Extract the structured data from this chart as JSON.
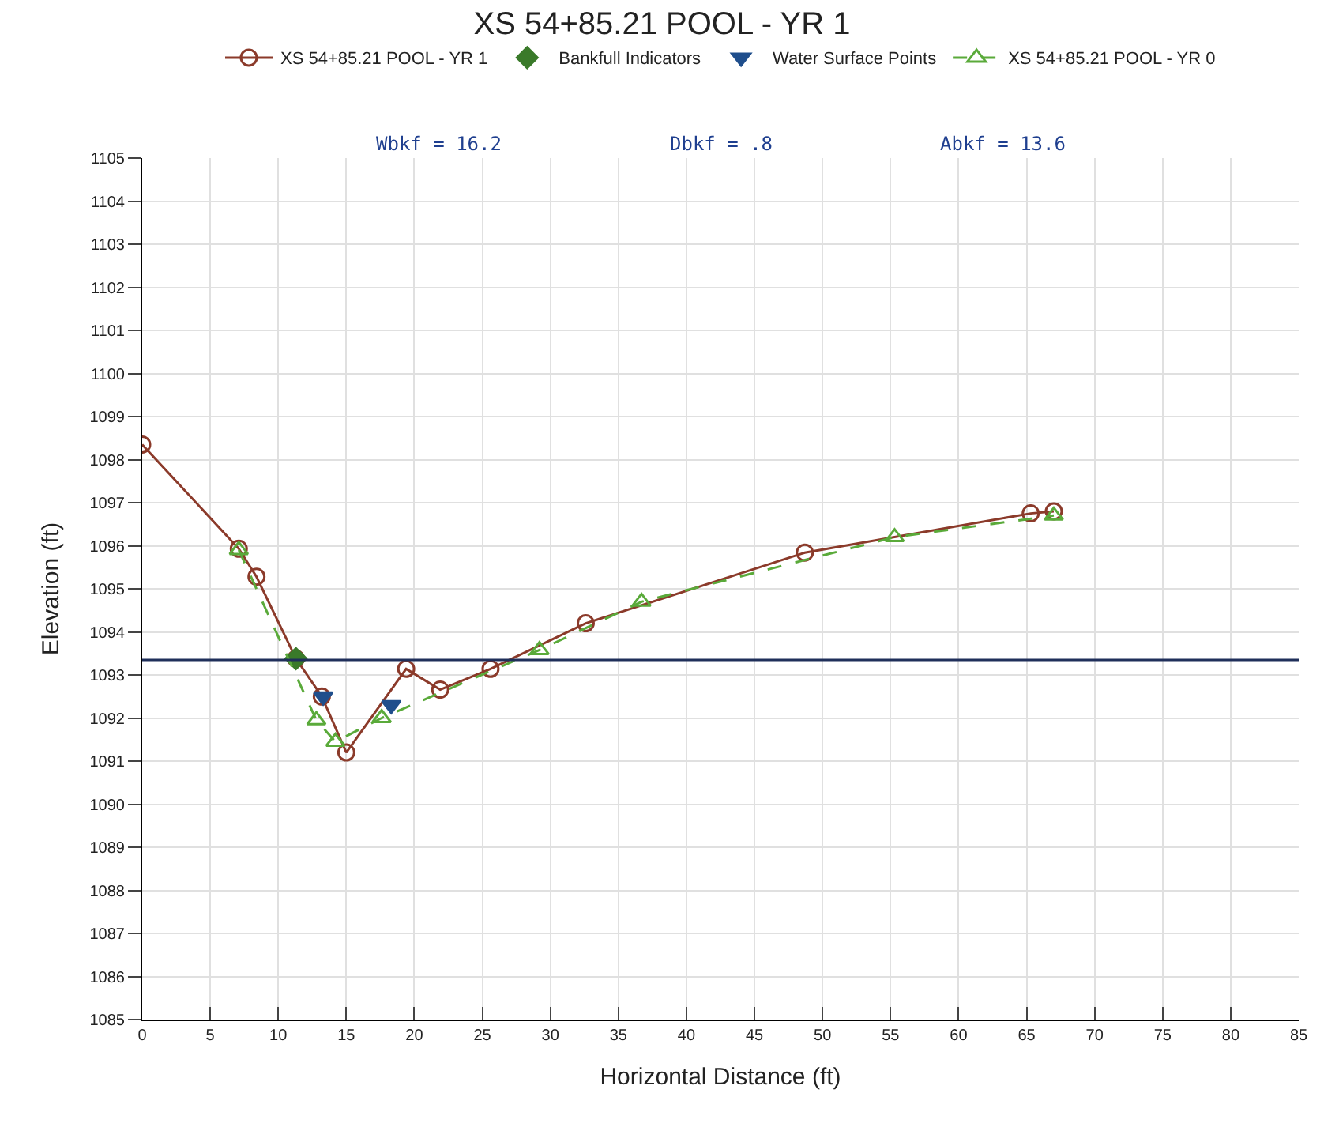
{
  "chart_data": {
    "type": "line",
    "title": "XS 54+85.21 POOL - YR 1",
    "xlabel": "Horizontal Distance (ft)",
    "ylabel": "Elevation (ft)",
    "annotations": [
      "Wbkf = 16.2",
      "Dbkf = .8",
      "Abkf = 13.6"
    ],
    "series": [
      {
        "name": "XS 54+85.21 POOL - YR 1",
        "color": "#8b3a2a",
        "marker": "circle",
        "line_style": "solid",
        "x": [
          0,
          7.1,
          8.4,
          11.3,
          13.2,
          15.0,
          19.4,
          21.9,
          25.6,
          32.6,
          48.7,
          65.3,
          67
        ],
        "values": [
          1098.35,
          1095.93,
          1095.28,
          1093.38,
          1092.5,
          1091.2,
          1093.14,
          1092.66,
          1093.14,
          1094.2,
          1095.84,
          1096.75,
          1096.8
        ]
      },
      {
        "name": "Bankfull Indicators",
        "type": "scatter",
        "color": "#3a7a2a",
        "marker": "diamond",
        "x": [
          11.3
        ],
        "values": [
          1093.38
        ]
      },
      {
        "name": "Water Surface Points",
        "type": "scatter",
        "color": "#1f4e8c",
        "marker": "triangle-down",
        "x": [
          13.3,
          18.3
        ],
        "values": [
          1092.5,
          1092.3
        ]
      },
      {
        "name": "XS 54+85.21 POOL - YR 0",
        "color": "#5aaa3a",
        "marker": "triangle",
        "line_style": "dashed",
        "x": [
          7.1,
          12.8,
          14.2,
          17.6,
          29.2,
          36.7,
          55.3,
          67
        ],
        "values": [
          1095.9,
          1091.95,
          1091.45,
          1092.0,
          1093.58,
          1094.7,
          1096.2,
          1096.7
        ]
      }
    ],
    "ref_lines": [
      {
        "axis": "y",
        "value": 1093.35,
        "color": "#1f2f5a"
      }
    ],
    "xlim": [
      0,
      85
    ],
    "xticks": [
      0,
      5,
      10,
      15,
      20,
      25,
      30,
      35,
      40,
      45,
      50,
      55,
      60,
      65,
      70,
      75,
      80,
      85
    ],
    "ylim": [
      1085,
      1105
    ],
    "yticks": [
      1085,
      1086,
      1087,
      1088,
      1089,
      1090,
      1091,
      1092,
      1093,
      1094,
      1095,
      1096,
      1097,
      1098,
      1099,
      1100,
      1101,
      1102,
      1103,
      1104,
      1105
    ],
    "grid": true,
    "legend": "top"
  }
}
